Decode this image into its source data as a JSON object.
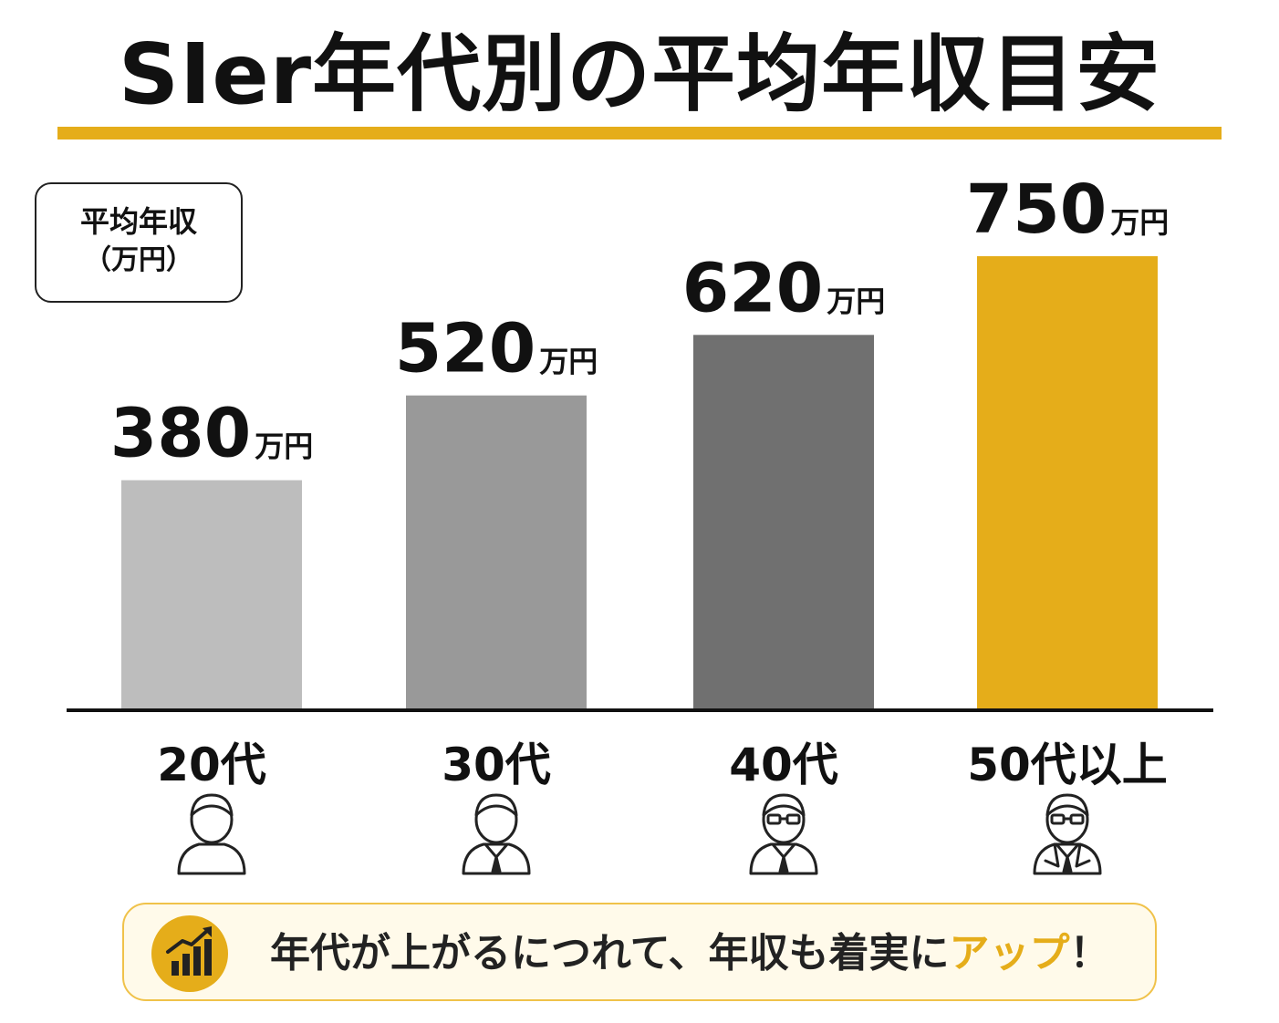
{
  "title": "SIer年代別の平均年収目安",
  "unit_label": {
    "line1": "平均年収",
    "line2": "（万円）"
  },
  "colors": {
    "accent": "#e5ad1a",
    "bar_20s": "#bdbdbd",
    "bar_30s": "#999999",
    "bar_40s": "#707070",
    "bar_50s": "#e5ad1a",
    "axis": "#111111"
  },
  "chart_data": {
    "type": "bar",
    "categories": [
      "20代",
      "30代",
      "40代",
      "50代以上"
    ],
    "values": [
      380,
      520,
      620,
      750
    ],
    "value_unit": "万円",
    "value_labels": [
      "380",
      "520",
      "620",
      "750"
    ],
    "xlabel": "",
    "ylabel": "平均年収（万円）",
    "ylim": [
      0,
      750
    ],
    "grid": false,
    "legend": "none",
    "category_icons": [
      "person-icon",
      "person-tie-icon",
      "person-glasses-tie-icon",
      "person-glasses-suit-icon"
    ]
  },
  "callout": {
    "icon": "chart-up-icon",
    "text_main": "年代が上がるにつれて、年収も着実に",
    "text_accent": "アップ",
    "text_end": "！"
  }
}
